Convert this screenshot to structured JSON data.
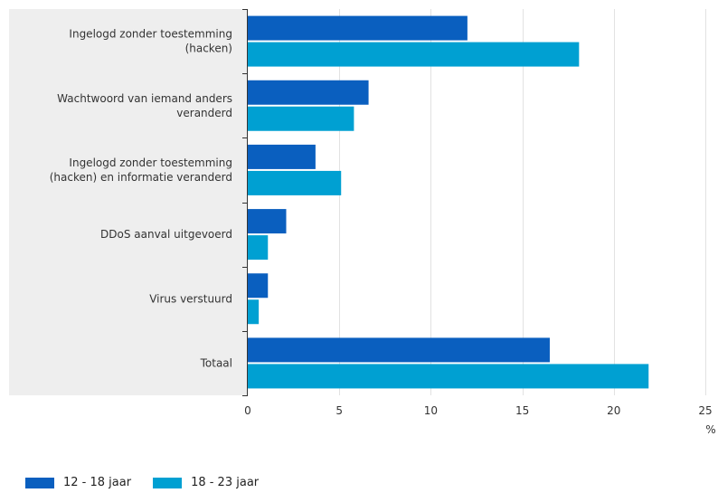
{
  "chart_data": {
    "type": "bar",
    "orientation": "horizontal",
    "categories": [
      [
        "Ingelogd zonder toestemming",
        "(hacken)"
      ],
      [
        "Wachtwoord van iemand anders",
        "veranderd"
      ],
      [
        "Ingelogd zonder toestemming",
        "(hacken) en informatie veranderd"
      ],
      [
        "DDoS aanval uitgevoerd"
      ],
      [
        "Virus verstuurd"
      ],
      [
        "Totaal"
      ]
    ],
    "series": [
      {
        "name": "12 - 18 jaar",
        "color": "#0a5fbf",
        "values": [
          12.0,
          6.6,
          3.7,
          2.1,
          1.1,
          16.5
        ]
      },
      {
        "name": "18 - 23 jaar",
        "color": "#00a0d2",
        "values": [
          18.1,
          5.8,
          5.1,
          1.1,
          0.6,
          21.9
        ]
      }
    ],
    "xlim": [
      0,
      25
    ],
    "xticks": [
      0,
      5,
      10,
      15,
      20,
      25
    ],
    "xunit": "%",
    "grid": true,
    "legend_position": "bottom-left"
  }
}
